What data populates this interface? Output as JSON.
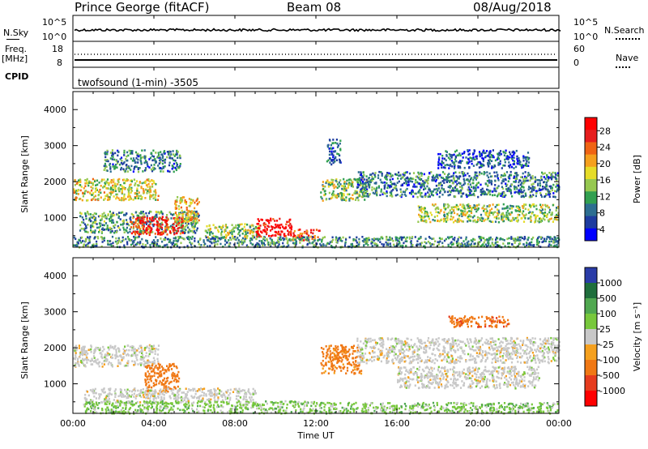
{
  "header": {
    "station": "Prince George (fitACF)",
    "beam": "Beam 08",
    "date": "08/Aug/2018"
  },
  "top_panels": {
    "nsky_label": "N.Sky",
    "nsky_ticks": [
      "10^5",
      "10^0"
    ],
    "nsearch_label": "N.Search",
    "freq_label": "Freq.",
    "freq_unit": "[MHz]",
    "freq_ticks": [
      "18",
      "8"
    ],
    "nave_label": "Nave",
    "nave_ticks": [
      "60",
      "0"
    ],
    "cpid_label": "CPID",
    "cpid_value": "twofsound (1-min) -3505"
  },
  "chart_data": [
    {
      "type": "heatmap",
      "name": "power-panel",
      "ylabel": "Slant Range [km]",
      "xlabel": "",
      "x_ticks": [
        "00:00",
        "04:00",
        "08:00",
        "12:00",
        "16:00",
        "20:00",
        "00:00"
      ],
      "y_ticks": [
        1000,
        2000,
        3000,
        4000
      ],
      "xlim_hours": [
        0,
        24
      ],
      "ylim_km": [
        180,
        4500
      ],
      "colorbar": {
        "label": "Power [dB]",
        "ticks": [
          "28",
          "24",
          "20",
          "16",
          "12",
          "8",
          "4"
        ],
        "range": [
          0,
          30
        ],
        "colors": [
          "#0000ff",
          "#1e3ca0",
          "#2d6e91",
          "#32a050",
          "#96c850",
          "#e6dc28",
          "#f5a01e",
          "#f06414",
          "#e61e1e",
          "#ff0000"
        ]
      },
      "regions": [
        {
          "t0": 0.0,
          "t1": 4.2,
          "r0": 1500,
          "r1": 2100,
          "value": 16
        },
        {
          "t0": 1.5,
          "t1": 5.3,
          "r0": 2300,
          "r1": 2900,
          "value": 8
        },
        {
          "t0": 0.3,
          "t1": 6.2,
          "r0": 600,
          "r1": 1200,
          "value": 10
        },
        {
          "t0": 2.8,
          "t1": 5.4,
          "r0": 550,
          "r1": 1050,
          "value": 26
        },
        {
          "t0": 5.0,
          "t1": 6.2,
          "r0": 900,
          "r1": 1600,
          "value": 18
        },
        {
          "t0": 6.5,
          "t1": 9.2,
          "r0": 450,
          "r1": 850,
          "value": 14
        },
        {
          "t0": 9.0,
          "t1": 10.8,
          "r0": 500,
          "r1": 1000,
          "value": 29
        },
        {
          "t0": 10.8,
          "t1": 12.2,
          "r0": 400,
          "r1": 700,
          "value": 24
        },
        {
          "t0": 12.2,
          "t1": 14.5,
          "r0": 1500,
          "r1": 2100,
          "value": 14
        },
        {
          "t0": 12.5,
          "t1": 13.2,
          "r0": 2500,
          "r1": 3200,
          "value": 6
        },
        {
          "t0": 14.0,
          "t1": 24.0,
          "r0": 1600,
          "r1": 2300,
          "value": 8
        },
        {
          "t0": 17.0,
          "t1": 24.0,
          "r0": 900,
          "r1": 1400,
          "value": 14
        },
        {
          "t0": 18.0,
          "t1": 22.5,
          "r0": 2400,
          "r1": 2900,
          "value": 6
        },
        {
          "t0": 0.0,
          "t1": 24.0,
          "r0": 200,
          "r1": 500,
          "value": 9
        }
      ]
    },
    {
      "type": "heatmap",
      "name": "velocity-panel",
      "ylabel": "Slant Range [km]",
      "xlabel": "Time UT",
      "x_ticks": [
        "00:00",
        "04:00",
        "08:00",
        "12:00",
        "16:00",
        "20:00",
        "00:00"
      ],
      "y_ticks": [
        1000,
        2000,
        3000,
        4000
      ],
      "xlim_hours": [
        0,
        24
      ],
      "ylim_km": [
        180,
        4500
      ],
      "colorbar": {
        "label": "Velocity [m s⁻¹]",
        "ticks": [
          "1000",
          "500",
          "100",
          "25",
          "-25",
          "-100",
          "-500",
          "-1000"
        ],
        "colors": [
          "#2a3ca8",
          "#1f6e3c",
          "#50a850",
          "#78c83c",
          "#c8c8c8",
          "#f5a01e",
          "#f07814",
          "#e63c1e",
          "#ff0000"
        ]
      },
      "regions": [
        {
          "t0": 0.0,
          "t1": 4.2,
          "r0": 1500,
          "r1": 2100,
          "value": 0
        },
        {
          "t0": 3.5,
          "t1": 5.2,
          "r0": 800,
          "r1": 1600,
          "value": -300
        },
        {
          "t0": 0.5,
          "t1": 9.0,
          "r0": 500,
          "r1": 900,
          "value": 0
        },
        {
          "t0": 0.5,
          "t1": 12.0,
          "r0": 200,
          "r1": 550,
          "value": 60
        },
        {
          "t0": 12.2,
          "t1": 14.2,
          "r0": 1300,
          "r1": 2100,
          "value": -200
        },
        {
          "t0": 14.0,
          "t1": 24.0,
          "r0": 1600,
          "r1": 2300,
          "value": 0
        },
        {
          "t0": 16.0,
          "t1": 23.0,
          "r0": 900,
          "r1": 1500,
          "value": 0
        },
        {
          "t0": 18.5,
          "t1": 21.5,
          "r0": 2600,
          "r1": 2900,
          "value": -400
        },
        {
          "t0": 12.0,
          "t1": 24.0,
          "r0": 200,
          "r1": 500,
          "value": 60
        }
      ]
    }
  ]
}
